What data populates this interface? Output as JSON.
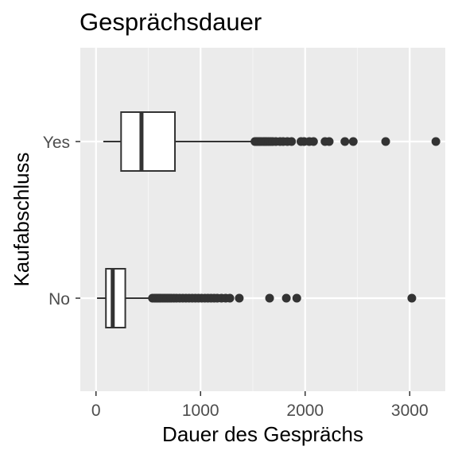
{
  "chart_data": {
    "type": "boxplot",
    "orientation": "horizontal",
    "title": "Gesprächsdauer",
    "xlabel": "Dauer des Gesprächs",
    "ylabel": "Kaufabschluss",
    "xlim": [
      -150,
      3340
    ],
    "x_ticks": [
      0,
      1000,
      2000,
      3000
    ],
    "x_minor_ticks": [
      500,
      1500,
      2500
    ],
    "grid": true,
    "legend": "none",
    "categories": [
      "Yes",
      "No"
    ],
    "series": [
      {
        "category": "Yes",
        "min": 70,
        "q1": 240,
        "median": 435,
        "q3": 755,
        "max": 1510,
        "outliers": [
          1520,
          1535,
          1550,
          1565,
          1580,
          1600,
          1615,
          1630,
          1650,
          1670,
          1690,
          1720,
          1760,
          1790,
          1830,
          1870,
          1960,
          1990,
          2040,
          2080,
          2190,
          2230,
          2380,
          2460,
          2770,
          3250
        ]
      },
      {
        "category": "No",
        "min": 10,
        "q1": 95,
        "median": 160,
        "q3": 280,
        "max": 535,
        "outliers": [
          540,
          560,
          575,
          590,
          605,
          620,
          640,
          660,
          680,
          700,
          720,
          745,
          770,
          800,
          830,
          860,
          890,
          920,
          950,
          980,
          1010,
          1040,
          1070,
          1100,
          1130,
          1160,
          1200,
          1240,
          1280,
          1370,
          1660,
          1820,
          1920,
          3020
        ]
      }
    ],
    "colors": {
      "panel": "#ebebeb",
      "grid_major": "#ffffff",
      "grid_minor": "#f5f5f5",
      "box_fill": "#ffffff",
      "box_line": "#333333",
      "point": "#333333",
      "tick_label": "#4d4d4d",
      "tick_mark": "#333333"
    }
  }
}
